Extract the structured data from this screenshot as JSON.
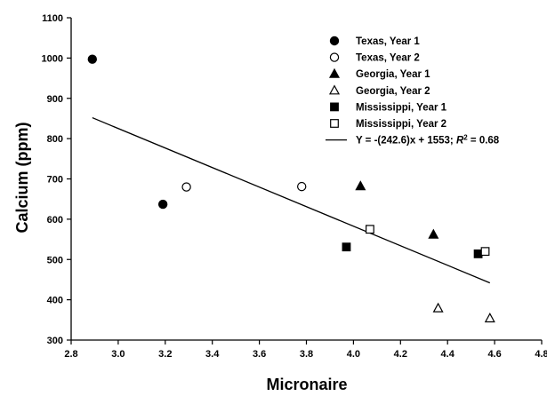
{
  "chart_data": {
    "type": "scatter",
    "xlabel": "Micronaire",
    "ylabel": "Calcium (ppm)",
    "xlim": [
      2.8,
      4.8
    ],
    "ylim": [
      300,
      1100
    ],
    "xticks": [
      "2.8",
      "3.0",
      "3.2",
      "3.4",
      "3.6",
      "3.8",
      "4.0",
      "4.2",
      "4.4",
      "4.6",
      "4.8"
    ],
    "yticks": [
      "300",
      "400",
      "500",
      "600",
      "700",
      "800",
      "900",
      "1000",
      "1100"
    ],
    "grid": false,
    "legend_position": "top-right",
    "series": [
      {
        "name": "Texas, Year 1",
        "marker": "circle",
        "filled": true,
        "points": [
          [
            2.89,
            997
          ],
          [
            3.19,
            637
          ]
        ]
      },
      {
        "name": "Texas, Year 2",
        "marker": "circle",
        "filled": false,
        "points": [
          [
            3.29,
            680
          ],
          [
            3.78,
            681
          ]
        ]
      },
      {
        "name": "Georgia, Year 1",
        "marker": "triangle",
        "filled": true,
        "points": [
          [
            4.03,
            682
          ],
          [
            4.34,
            562
          ]
        ]
      },
      {
        "name": "Georgia, Year 2",
        "marker": "triangle",
        "filled": false,
        "points": [
          [
            4.36,
            379
          ],
          [
            4.58,
            354
          ]
        ]
      },
      {
        "name": "Mississippi, Year 1",
        "marker": "square",
        "filled": true,
        "points": [
          [
            3.97,
            531
          ],
          [
            4.53,
            514
          ]
        ]
      },
      {
        "name": "Mississippi, Year 2",
        "marker": "square",
        "filled": false,
        "points": [
          [
            4.07,
            575
          ],
          [
            4.56,
            520
          ]
        ]
      }
    ],
    "regression": {
      "label_prefix": "Y = -(242.6)x + 1553; ",
      "label_r": "R",
      "label_sup": "2",
      "label_suffix": " = 0.68",
      "slope": -242.6,
      "intercept": 1553,
      "x_range": [
        2.89,
        4.58
      ]
    }
  }
}
